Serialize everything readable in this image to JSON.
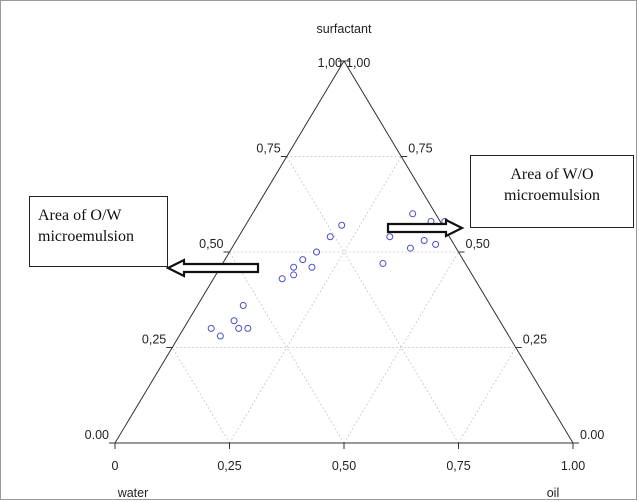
{
  "chart_data": {
    "type": "scatter",
    "subtype": "ternary",
    "vertices": {
      "top": "surfactant",
      "bottom_left": "water",
      "bottom_right": "oil"
    },
    "axes": {
      "left": {
        "ticks": [
          "1,00",
          "0,75",
          "0,50",
          "0,25",
          "0.00"
        ]
      },
      "right": {
        "ticks": [
          "1,00",
          "0,75",
          "0,50",
          "0,25",
          "0.00"
        ]
      },
      "bottom": {
        "ticks": [
          "0",
          "0,25",
          "0,50",
          "0,75",
          "1.00"
        ]
      }
    },
    "grid": "dotted",
    "points": [
      {
        "oil": 0.06,
        "surfactant": 0.3
      },
      {
        "oil": 0.09,
        "surfactant": 0.28
      },
      {
        "oil": 0.1,
        "surfactant": 0.32
      },
      {
        "oil": 0.12,
        "surfactant": 0.3
      },
      {
        "oil": 0.14,
        "surfactant": 0.3
      },
      {
        "oil": 0.1,
        "surfactant": 0.36
      },
      {
        "oil": 0.15,
        "surfactant": 0.43
      },
      {
        "oil": 0.16,
        "surfactant": 0.46
      },
      {
        "oil": 0.17,
        "surfactant": 0.48
      },
      {
        "oil": 0.17,
        "surfactant": 0.44
      },
      {
        "oil": 0.2,
        "surfactant": 0.46
      },
      {
        "oil": 0.19,
        "surfactant": 0.5
      },
      {
        "oil": 0.2,
        "surfactant": 0.54
      },
      {
        "oil": 0.21,
        "surfactant": 0.57
      },
      {
        "oil": 0.33,
        "surfactant": 0.54
      },
      {
        "oil": 0.35,
        "surfactant": 0.47
      },
      {
        "oil": 0.39,
        "surfactant": 0.51
      },
      {
        "oil": 0.35,
        "surfactant": 0.6
      },
      {
        "oil": 0.41,
        "surfactant": 0.53
      },
      {
        "oil": 0.4,
        "surfactant": 0.58
      },
      {
        "oil": 0.43,
        "surfactant": 0.58
      },
      {
        "oil": 0.44,
        "surfactant": 0.52
      }
    ],
    "point_color": "#4a50c8",
    "annotations": [
      {
        "text": "Area of O/W microemulsion",
        "arrow": "left"
      },
      {
        "text": "Area of W/O microemulsion",
        "arrow": "right"
      }
    ]
  },
  "callouts": {
    "ow": "Area of O/W microemulsion",
    "wo": "Area of W/O microemulsion"
  }
}
